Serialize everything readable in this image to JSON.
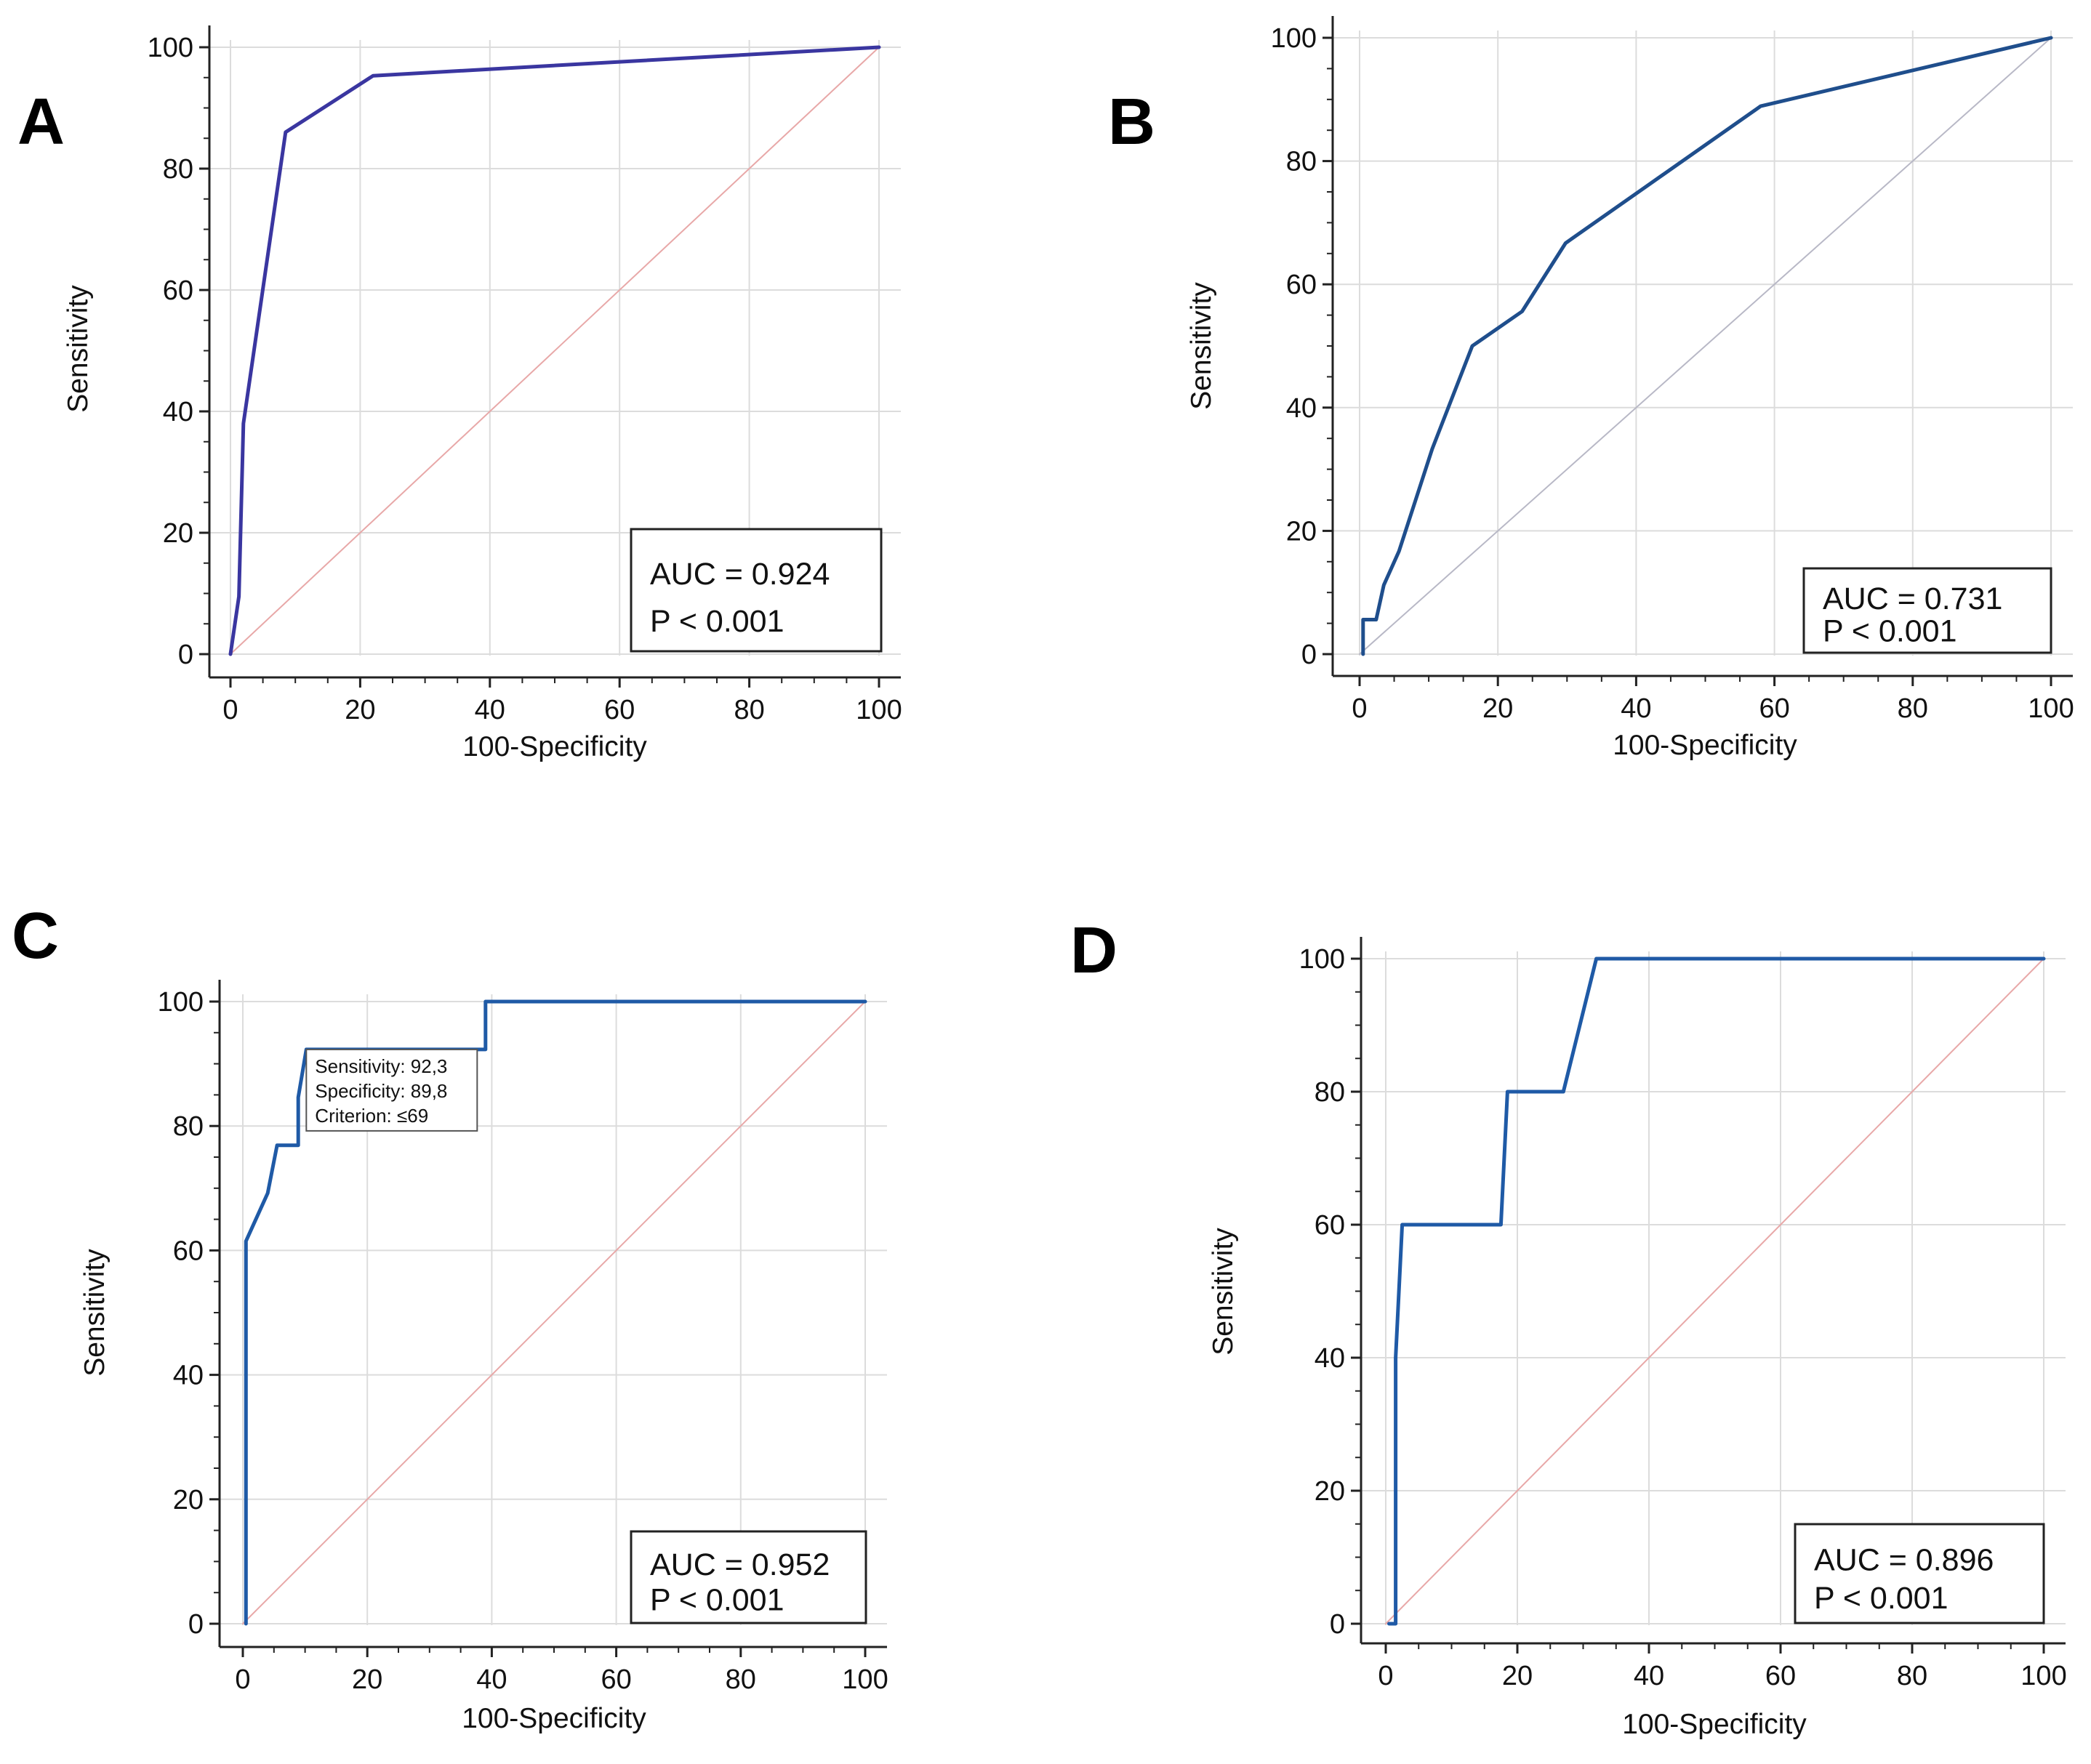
{
  "figure": {
    "panels": [
      "A",
      "B",
      "C",
      "D"
    ]
  },
  "chart_data": [
    {
      "panel": "A",
      "type": "line",
      "title": "",
      "xlabel": "100-Specificity",
      "ylabel": "Sensitivity",
      "xlim": [
        0,
        100
      ],
      "ylim": [
        0,
        100
      ],
      "xticks": [
        "0",
        "20",
        "40",
        "60",
        "80",
        "100"
      ],
      "yticks": [
        "0",
        "20",
        "40",
        "60",
        "80",
        "100"
      ],
      "grid": true,
      "series": [
        {
          "name": "ROC",
          "color": "#3a36a0",
          "x": [
            0,
            1.3,
            2,
            8.5,
            22,
            100
          ],
          "y": [
            0,
            9.5,
            38,
            86,
            95.3,
            100
          ]
        },
        {
          "name": "reference",
          "color": "#e8a8a8",
          "x": [
            0,
            100
          ],
          "y": [
            0,
            100
          ]
        }
      ],
      "stats": {
        "auc": "AUC = 0.924",
        "p": "P < 0.001"
      }
    },
    {
      "panel": "B",
      "type": "line",
      "title": "",
      "xlabel": "100-Specificity",
      "ylabel": "Sensitivity",
      "xlim": [
        0,
        100
      ],
      "ylim": [
        0,
        100
      ],
      "xticks": [
        "0",
        "20",
        "40",
        "60",
        "80",
        "100"
      ],
      "yticks": [
        "0",
        "20",
        "40",
        "60",
        "80",
        "100"
      ],
      "grid": true,
      "series": [
        {
          "name": "ROC",
          "color": "#1f4e8c",
          "x": [
            0.5,
            0.5,
            2.4,
            3.5,
            5.7,
            10.5,
            16.3,
            23.5,
            29.8,
            58,
            100
          ],
          "y": [
            0,
            5.6,
            5.6,
            11.2,
            16.7,
            33.3,
            50,
            55.6,
            66.7,
            88.9,
            100
          ]
        },
        {
          "name": "reference",
          "color": "#b8b8c6",
          "x": [
            0,
            100
          ],
          "y": [
            0,
            100
          ]
        }
      ],
      "stats": {
        "auc": "AUC = 0.731",
        "p": "P < 0.001"
      }
    },
    {
      "panel": "C",
      "type": "line",
      "title": "",
      "xlabel": "100-Specificity",
      "ylabel": "Sensitivity",
      "xlim": [
        0,
        100
      ],
      "ylim": [
        0,
        100
      ],
      "xticks": [
        "0",
        "20",
        "40",
        "60",
        "80",
        "100"
      ],
      "yticks": [
        "0",
        "20",
        "40",
        "60",
        "80",
        "100"
      ],
      "grid": true,
      "series": [
        {
          "name": "ROC",
          "color": "#1f5aa6",
          "x": [
            0.5,
            0.5,
            4,
            5.5,
            8.9,
            8.9,
            10.2,
            39,
            39,
            100
          ],
          "y": [
            0,
            61.5,
            69.2,
            76.9,
            76.9,
            84.6,
            92.3,
            92.3,
            100,
            100
          ]
        },
        {
          "name": "reference",
          "color": "#e8a8a8",
          "x": [
            0,
            100
          ],
          "y": [
            0,
            100
          ]
        }
      ],
      "tooltip": {
        "x": 10.2,
        "y": 92.3,
        "lines": [
          "Sensitivity: 92,3",
          "Specificity: 89,8",
          "Criterion: ≤69"
        ]
      },
      "stats": {
        "auc": "AUC = 0.952",
        "p": "P < 0.001"
      }
    },
    {
      "panel": "D",
      "type": "line",
      "title": "",
      "xlabel": "100-Specificity",
      "ylabel": "Sensitivity",
      "xlim": [
        0,
        100
      ],
      "ylim": [
        0,
        100
      ],
      "xticks": [
        "0",
        "20",
        "40",
        "60",
        "80",
        "100"
      ],
      "yticks": [
        "0",
        "20",
        "40",
        "60",
        "80",
        "100"
      ],
      "grid": true,
      "series": [
        {
          "name": "ROC",
          "color": "#1f5aa6",
          "x": [
            0.5,
            1.5,
            1.5,
            2.5,
            17.5,
            18.5,
            27,
            32,
            100
          ],
          "y": [
            0,
            0,
            40,
            60,
            60,
            80,
            80,
            100,
            100
          ]
        },
        {
          "name": "reference",
          "color": "#e8a8a8",
          "x": [
            0,
            100
          ],
          "y": [
            0,
            100
          ]
        }
      ],
      "stats": {
        "auc": "AUC = 0.896",
        "p": "P < 0.001"
      }
    }
  ]
}
